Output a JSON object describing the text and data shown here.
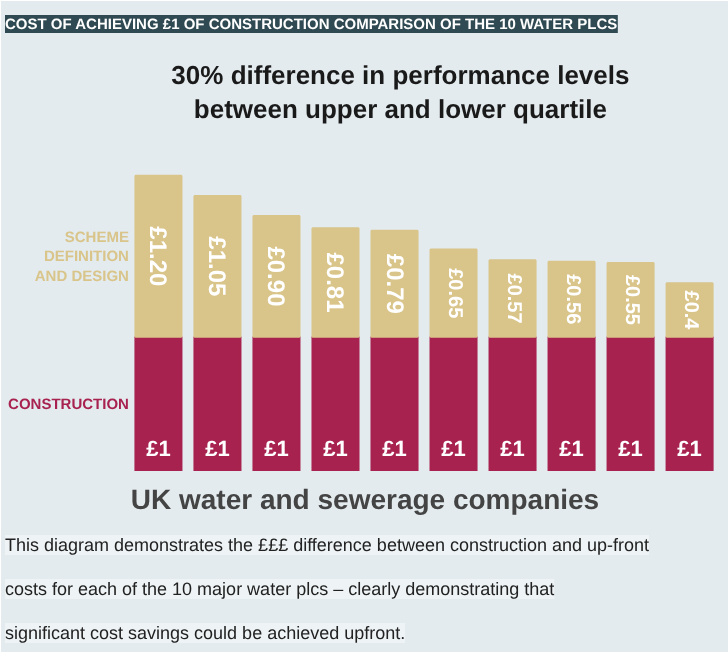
{
  "chart_data": {
    "type": "bar",
    "stacked": true,
    "title": "COST OF ACHIEVING £1 OF CONSTRUCTION COMPARISON OF THE 10 WATER PLCS",
    "xlabel": "UK water and sewerage companies",
    "categories": [
      null,
      null,
      null,
      null,
      null,
      null,
      null,
      null,
      null,
      null
    ],
    "series": [
      {
        "name": "CONSTRUCTION",
        "color": "#a8224f",
        "values": [
          1,
          1,
          1,
          1,
          1,
          1,
          1,
          1,
          1,
          1
        ],
        "value_labels": [
          "£1",
          "£1",
          "£1",
          "£1",
          "£1",
          "£1",
          "£1",
          "£1",
          "£1",
          "£1"
        ]
      },
      {
        "name": "SCHEME DEFINITION AND DESIGN",
        "color": "#d9c48a",
        "values": [
          1.2,
          1.05,
          0.9,
          0.81,
          0.79,
          0.65,
          0.57,
          0.56,
          0.55,
          0.4
        ],
        "value_labels": [
          "£1.20",
          "£1.05",
          "£0.90",
          "£0.81",
          "£0.79",
          "£0.65",
          "£0.57",
          "£0.56",
          "£0.55",
          "£0.4"
        ]
      }
    ],
    "data_labels": true,
    "annotations": [
      "30% difference in performance levels between upper and lower quartile",
      "This diagram demonstrates the £££ difference between construction and up-front costs for each of the 10 major water plcs – clearly demonstrating that significant cost savings could be achieved upfront."
    ]
  }
}
